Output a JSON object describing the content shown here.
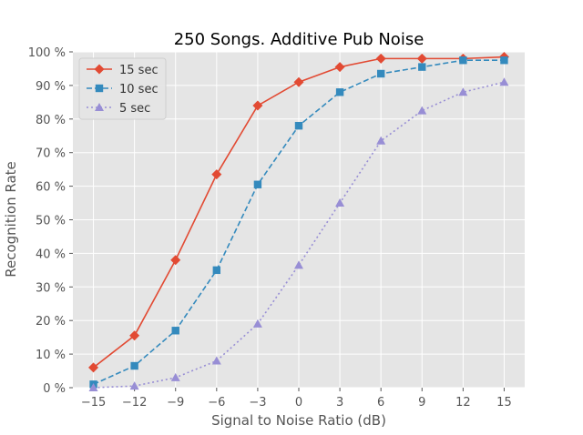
{
  "chart_data": {
    "type": "line",
    "title": "250 Songs. Additive Pub Noise",
    "xlabel": "Signal to Noise Ratio (dB)",
    "ylabel": "Recognition Rate",
    "x": [
      -15,
      -12,
      -9,
      -6,
      -3,
      0,
      3,
      6,
      9,
      12,
      15
    ],
    "x_tick_labels": [
      "−15",
      "−12",
      "−9",
      "−6",
      "−3",
      "0",
      "3",
      "6",
      "9",
      "12",
      "15"
    ],
    "y_tick_labels": [
      "0 %",
      "10 %",
      "20 %",
      "30 %",
      "40 %",
      "50 %",
      "60 %",
      "70 %",
      "80 %",
      "90 %",
      "100 %"
    ],
    "y_ticks": [
      0,
      10,
      20,
      30,
      40,
      50,
      60,
      70,
      80,
      90,
      100
    ],
    "xlim": [
      -16.5,
      16.5
    ],
    "ylim": [
      0,
      100
    ],
    "grid": true,
    "legend_position": "top-left",
    "series": [
      {
        "name": "15 sec",
        "values": [
          6,
          15.5,
          38,
          63.5,
          84,
          91,
          95.5,
          98,
          98,
          98,
          98.5
        ],
        "color": "#E24A33",
        "marker": "diamond",
        "line_style": "solid"
      },
      {
        "name": "10 sec",
        "values": [
          1,
          6.5,
          17,
          35,
          60.5,
          78,
          88,
          93.5,
          95.5,
          97.5,
          97.5
        ],
        "color": "#348ABD",
        "marker": "square",
        "line_style": "dashed"
      },
      {
        "name": "5 sec",
        "values": [
          0,
          0.5,
          3,
          8,
          19,
          36.5,
          55,
          73.5,
          82.5,
          88,
          91
        ],
        "color": "#988ED5",
        "marker": "triangle",
        "line_style": "dotted"
      }
    ]
  }
}
